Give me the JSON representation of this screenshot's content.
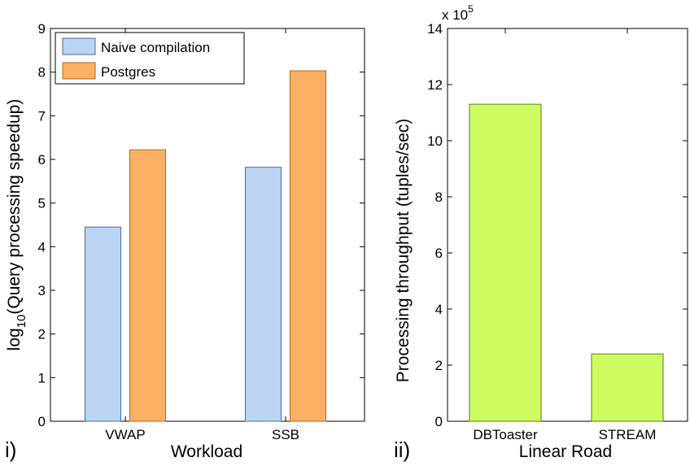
{
  "chart_data": [
    {
      "type": "bar",
      "panel_label": "i)",
      "categories": [
        "VWAP",
        "SSB"
      ],
      "series": [
        {
          "name": "Naive compilation",
          "values": [
            4.45,
            5.82
          ],
          "color": "#bcd4f3"
        },
        {
          "name": "Postgres",
          "values": [
            6.22,
            8.03
          ],
          "color": "#fcb064"
        }
      ],
      "xlabel": "Workload",
      "ylabel_prefix": "log",
      "ylabel_subscript": "10",
      "ylabel_suffix": "(Query processing speedup)",
      "ylim": [
        0,
        9
      ],
      "yticks": [
        "0",
        "1",
        "2",
        "3",
        "4",
        "5",
        "6",
        "7",
        "8",
        "9"
      ],
      "legend": "top-left",
      "grid": false
    },
    {
      "type": "bar",
      "panel_label": "ii)",
      "categories": [
        "DBToaster",
        "STREAM"
      ],
      "series": [
        {
          "values": [
            11.3,
            2.4
          ],
          "color": "#cdfd60"
        }
      ],
      "xlabel": "Linear Road",
      "ylabel": "Processing throughput (tuples/sec)",
      "ylim": [
        0,
        14
      ],
      "yticks": [
        "0",
        "2",
        "4",
        "6",
        "8",
        "10",
        "12",
        "14"
      ],
      "scale_prefix": "x 10",
      "scale_exponent": "5",
      "grid": false
    }
  ]
}
